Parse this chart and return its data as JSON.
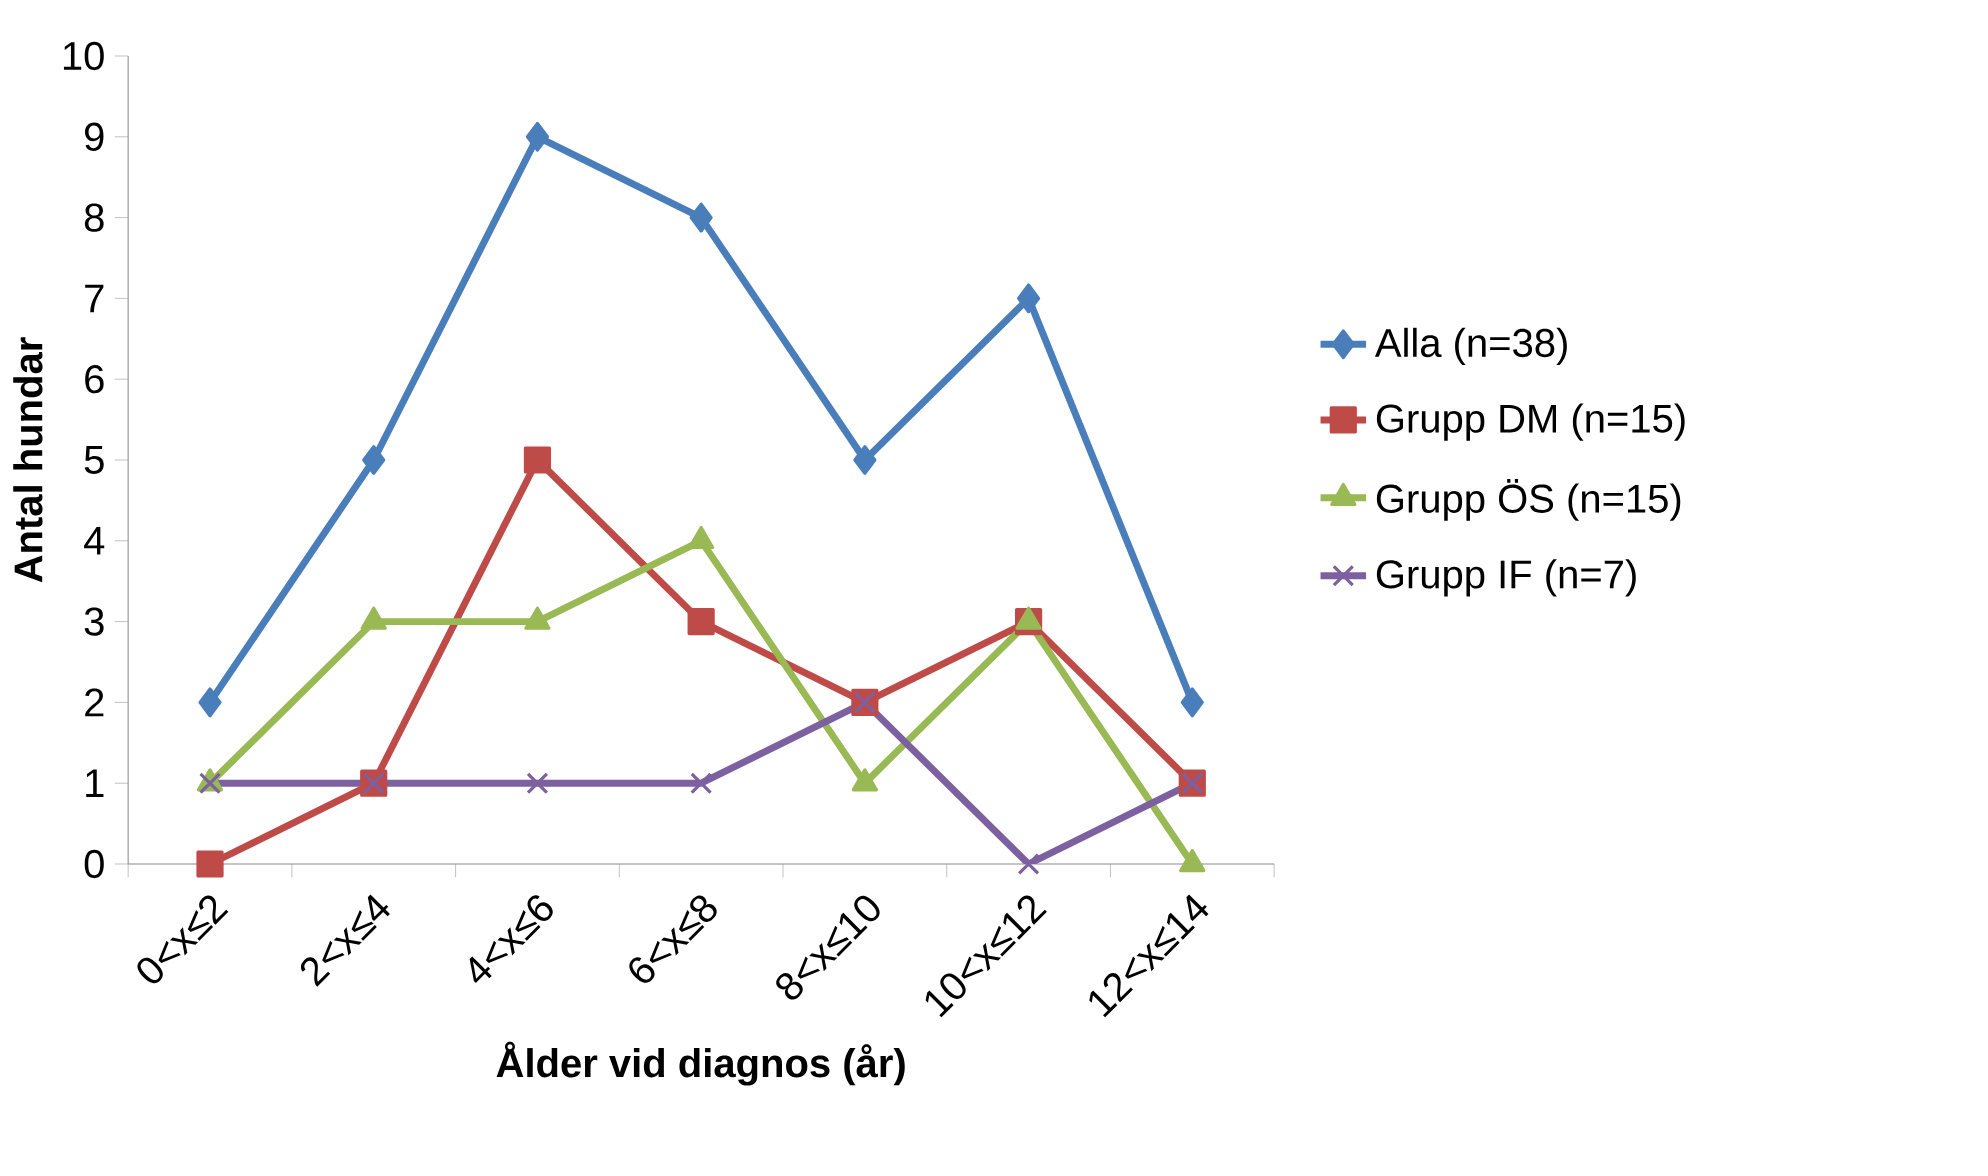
{
  "chart_data": {
    "type": "line",
    "xlabel": "Ålder vid diagnos (år)",
    "ylabel": "Antal hundar",
    "categories": [
      "0<x≤2",
      "2<x≤4",
      "4<x≤6",
      "6<x≤8",
      "8<x≤10",
      "10<x≤12",
      "12<x≤14"
    ],
    "series": [
      {
        "name": "Alla (n=38)",
        "color": "#4a7ebb",
        "marker": "diamond",
        "values": [
          2,
          5,
          9,
          8,
          5,
          7,
          2
        ]
      },
      {
        "name": "Grupp DM (n=15)",
        "color": "#be4b48",
        "marker": "square",
        "values": [
          0,
          1,
          5,
          3,
          2,
          3,
          1
        ]
      },
      {
        "name": "Grupp ÖS (n=15)",
        "color": "#98b954",
        "marker": "triangle",
        "values": [
          1,
          3,
          3,
          4,
          1,
          3,
          0
        ]
      },
      {
        "name": "Grupp IF (n=7)",
        "color": "#7d60a0",
        "marker": "cross",
        "values": [
          1,
          1,
          1,
          1,
          2,
          0,
          1
        ]
      }
    ],
    "ylim": [
      0,
      10
    ],
    "yticks": [
      0,
      1,
      2,
      3,
      4,
      5,
      6,
      7,
      8,
      9,
      10
    ],
    "grid": false,
    "legend": "right"
  }
}
